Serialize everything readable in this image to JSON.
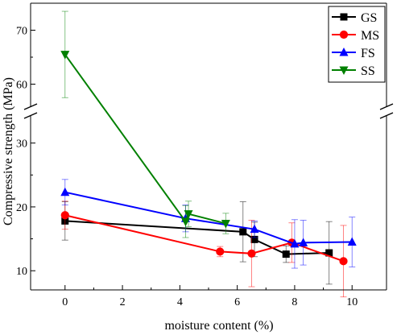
{
  "chart_data": {
    "type": "line",
    "xlabel": "moisture content (%)",
    "ylabel": "Compressive strength (MPa)",
    "xlim": [
      -1.2,
      11.2
    ],
    "x_ticks": [
      0,
      2,
      4,
      6,
      8,
      10
    ],
    "ylim_lower": [
      7,
      35
    ],
    "ylim_upper": [
      55,
      75
    ],
    "y_ticks_lower": [
      10,
      20,
      30
    ],
    "y_ticks_upper": [
      60,
      70
    ],
    "axis_break": "between 35 and 55 on y axis",
    "grid": false,
    "legend_position": "top-right",
    "series": [
      {
        "name": "GS",
        "color": "#000000",
        "marker": "square",
        "x": [
          0,
          6.2,
          6.6,
          7.7,
          9.2
        ],
        "y": [
          17.8,
          16.1,
          14.9,
          12.6,
          12.8
        ],
        "err": [
          3.0,
          4.7,
          2.7,
          1.3,
          4.9
        ]
      },
      {
        "name": "MS",
        "color": "#ff0000",
        "marker": "circle",
        "x": [
          0,
          5.4,
          6.5,
          7.9,
          9.7
        ],
        "y": [
          18.7,
          13.0,
          12.7,
          14.4,
          11.5
        ],
        "err": [
          2.2,
          0.8,
          5.2,
          3.1,
          5.6
        ]
      },
      {
        "name": "FS",
        "color": "#0000ff",
        "marker": "triangle-up",
        "x": [
          0,
          4.2,
          6.6,
          8.0,
          8.3,
          10.0
        ],
        "y": [
          22.3,
          18.2,
          16.5,
          14.2,
          14.4,
          14.5
        ],
        "err": [
          2.0,
          2.1,
          1.3,
          3.8,
          3.5,
          3.9
        ]
      },
      {
        "name": "SS",
        "color": "#008000",
        "marker": "triangle-down",
        "x": [
          0,
          4.2,
          4.3,
          5.6
        ],
        "y": [
          65.5,
          17.7,
          18.9,
          17.4
        ],
        "err": [
          8.0,
          2.5,
          2.0,
          1.6
        ]
      }
    ]
  }
}
